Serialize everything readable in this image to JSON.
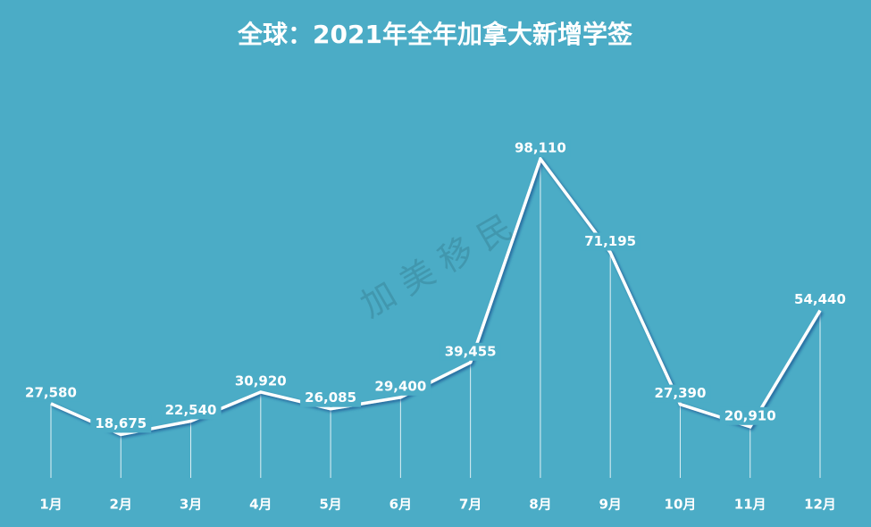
{
  "chart_data": {
    "type": "line",
    "title": "全球：2021年全年加拿大新增学签",
    "categories": [
      "1月",
      "2月",
      "3月",
      "4月",
      "5月",
      "6月",
      "7月",
      "8月",
      "9月",
      "10月",
      "11月",
      "12月"
    ],
    "values": [
      27580,
      18675,
      22540,
      30920,
      26085,
      29400,
      39455,
      98110,
      71195,
      27390,
      20910,
      54440
    ],
    "value_labels": [
      "27,580",
      "18,675",
      "22,540",
      "30,920",
      "26,085",
      "29,400",
      "39,455",
      "98,110",
      "71,195",
      "27,390",
      "20,910",
      "54,440"
    ],
    "color": "#ffffff"
  },
  "watermark": "加 美 移 民"
}
